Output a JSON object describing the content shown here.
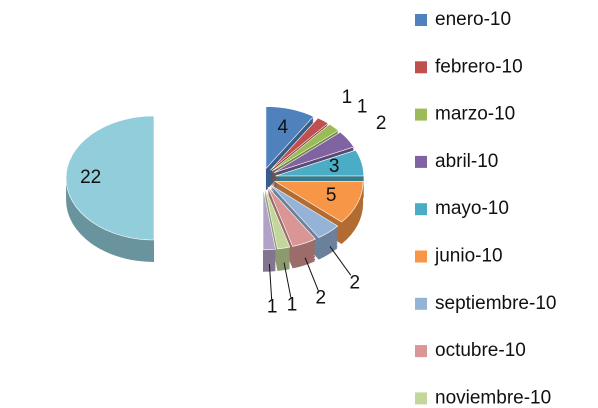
{
  "chart_data": {
    "type": "pie3d",
    "categories": [
      "enero-10",
      "febrero-10",
      "marzo-10",
      "abril-10",
      "mayo-10",
      "junio-10",
      "septiembre-10",
      "octubre-10",
      "noviembre-10",
      null,
      null
    ],
    "values": [
      4,
      1,
      1,
      2,
      3,
      5,
      2,
      2,
      1,
      1,
      22
    ],
    "colors": [
      "#4f81bd",
      "#c0504d",
      "#9bbb59",
      "#8064a2",
      "#4bacc6",
      "#f79646",
      "#95b3d7",
      "#d99694",
      "#c3d69b",
      "#b3a2c7",
      "#92cddc"
    ],
    "legend": "right"
  }
}
